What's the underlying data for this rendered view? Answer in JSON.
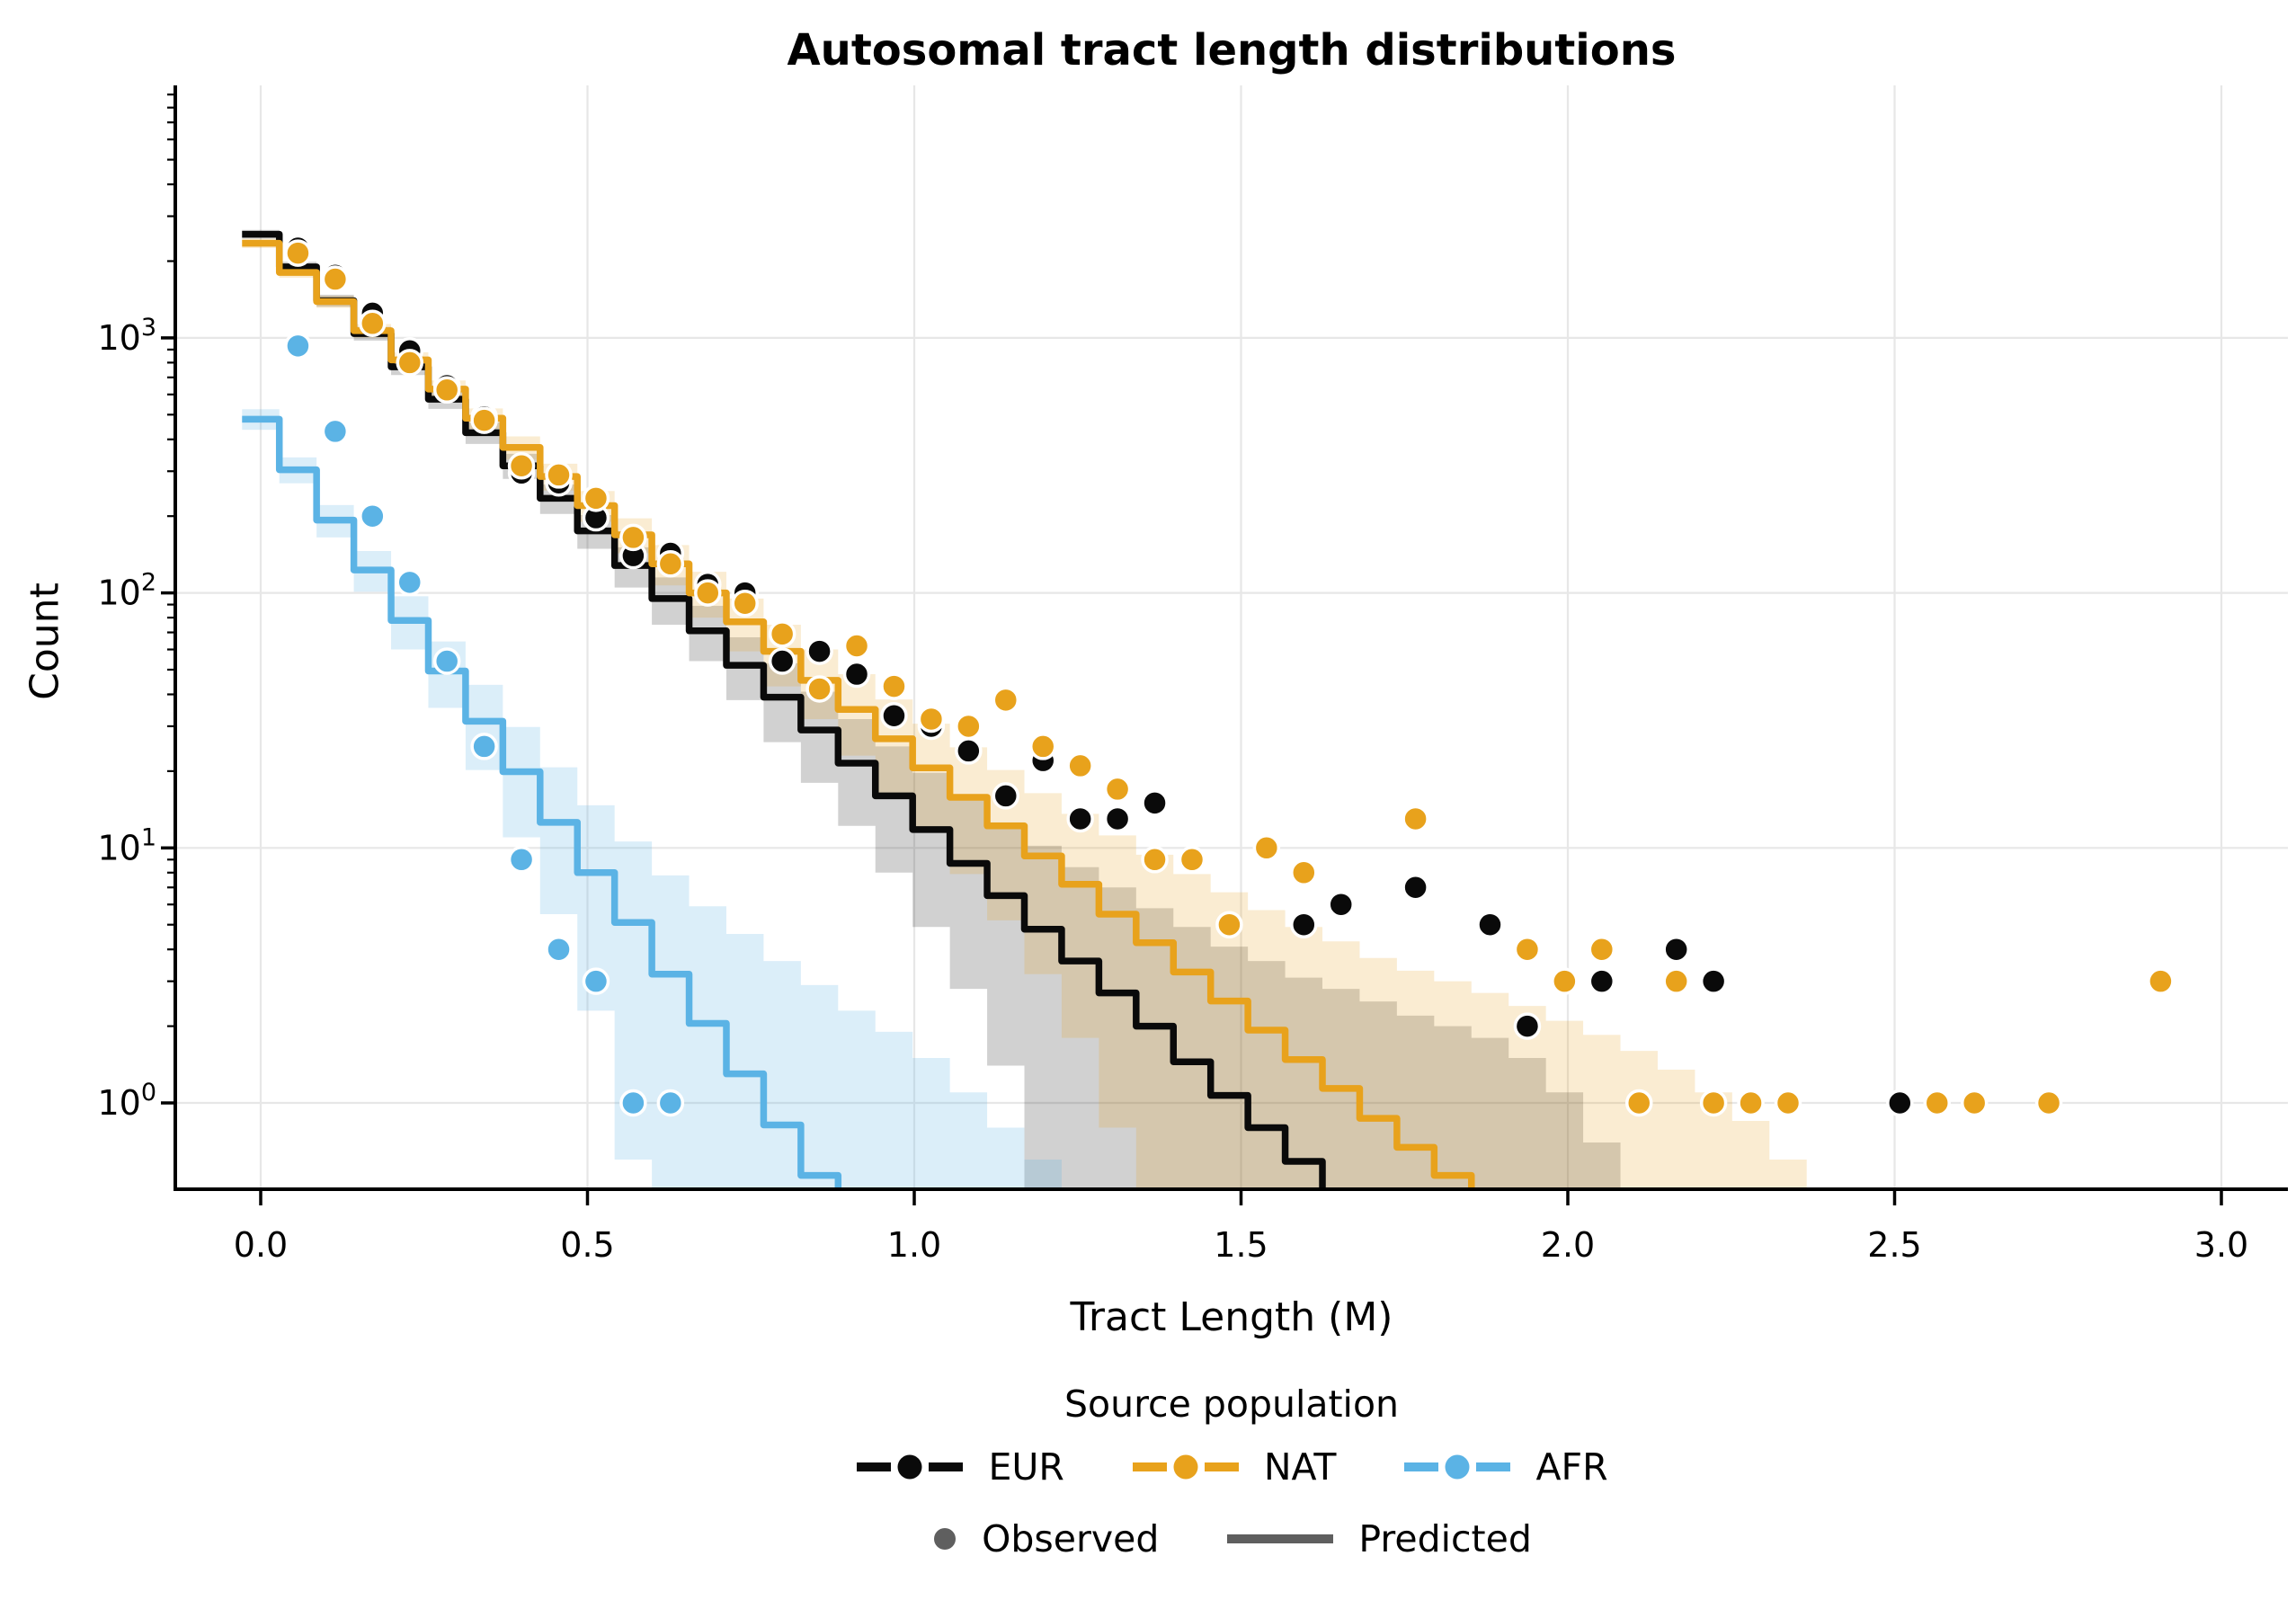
{
  "title": "Autosomal tract length distributions",
  "x_axis": {
    "label": "Tract Length (M)",
    "tick_labels": [
      "0.0",
      "0.5",
      "1.0",
      "1.5",
      "2.0",
      "2.5",
      "3.0"
    ],
    "tick_values": [
      0.0,
      0.5,
      1.0,
      1.5,
      2.0,
      2.5,
      3.0
    ]
  },
  "y_axis": {
    "label": "Count",
    "scale": "log",
    "tick_exponents": [
      3,
      2,
      1,
      0
    ],
    "tick_base": "10"
  },
  "legend": {
    "title": "Source population",
    "series_labels": [
      "EUR",
      "NAT",
      "AFR"
    ],
    "style_labels": [
      "Observed",
      "Predicted"
    ],
    "gray": "#5f5f5f"
  },
  "colors": {
    "eur": "#0a0a0a",
    "nat": "#e8a21c",
    "afr": "#5bb3e5",
    "eur_band": "rgba(0,0,0,0.18)",
    "nat_band": "rgba(232,162,28,0.20)",
    "afr_band": "rgba(91,179,229,0.22)",
    "grid": "#e7e7e7",
    "spine": "#000000"
  },
  "chart_data": {
    "type": "line",
    "subtype": "step-histogram-with-scatter",
    "title": "Autosomal tract length distributions",
    "xlabel": "Tract Length (M)",
    "ylabel": "Count",
    "xlim": [
      -0.131,
      3.102
    ],
    "ylim": [
      0.459,
      9780
    ],
    "grid": true,
    "legend_position": "below",
    "bin_width": 0.057,
    "series": [
      {
        "name": "EUR",
        "predicted": [
          2550,
          1900,
          1400,
          1040,
          770,
          575,
          425,
          315,
          235,
          175,
          128,
          95,
          71,
          52,
          39,
          29,
          21.5,
          16,
          11.8,
          8.7,
          6.5,
          4.8,
          3.6,
          2.7,
          2.0,
          1.45,
          1.07,
          0.8,
          0.59,
          0.44
        ],
        "ci_hi": [
          2652,
          1988,
          1476,
          1105,
          826,
          624,
          467,
          351,
          266,
          202,
          151,
          115,
          89,
          67,
          53,
          41,
          32,
          25,
          19.7,
          15.6,
          12.6,
          10.2,
          8.4,
          7.0,
          5.8,
          4.9,
          4.1,
          3.6,
          3.1,
          2.8,
          2.5,
          2.2,
          2.0,
          1.8,
          1.5,
          1.1,
          0.7
        ],
        "ci_lo": [
          2449,
          1813,
          1325,
          976,
          715,
          527,
          384,
          280,
          204,
          149,
          105,
          75,
          54,
          38,
          26,
          18,
          12.2,
          8.0,
          4.9,
          2.8,
          1.4,
          0.4,
          0.1,
          0,
          0,
          0,
          0,
          0,
          0,
          0,
          0,
          0,
          0,
          0,
          0,
          0,
          0
        ],
        "observed_k": [
          1,
          2,
          3,
          4,
          5,
          6,
          7,
          8,
          9,
          10,
          11,
          12,
          13,
          14,
          15,
          16,
          17,
          18,
          19,
          20,
          21,
          22,
          23,
          24,
          28,
          29,
          31,
          33,
          34,
          36,
          38,
          39,
          44
        ],
        "observed_v": [
          2250,
          1760,
          1250,
          890,
          650,
          490,
          295,
          270,
          197,
          140,
          143,
          108,
          100,
          54,
          59,
          48,
          33,
          30,
          24,
          16,
          22,
          13,
          13,
          15,
          5,
          6,
          7,
          5,
          2,
          3,
          4,
          3,
          1
        ]
      },
      {
        "name": "NAT",
        "predicted": [
          2350,
          1806,
          1388,
          1067,
          820,
          630,
          484,
          372,
          286,
          220,
          169,
          130,
          100,
          77,
          59,
          45.4,
          34.9,
          26.8,
          20.6,
          15.8,
          12.2,
          9.3,
          7.2,
          5.5,
          4.25,
          3.26,
          2.51,
          1.93,
          1.48,
          1.14,
          0.87,
          0.67,
          0.52
        ],
        "ci_hi": [
          2448,
          1892,
          1463,
          1133,
          878,
          681,
          529,
          411,
          321,
          251,
          196,
          154,
          121,
          95,
          75,
          60,
          48,
          38.2,
          30.7,
          24.8,
          20.2,
          16.4,
          13.6,
          11.2,
          9.4,
          7.9,
          6.7,
          5.7,
          4.9,
          4.3,
          3.7,
          3.3,
          3.0,
          2.7,
          2.4,
          2.1,
          1.85,
          1.6,
          1.35,
          1.1,
          0.85,
          0.6
        ],
        "ci_lo": [
          2253,
          1721,
          1313,
          1002,
          763,
          580,
          440,
          333,
          252,
          190,
          143,
          107,
          80,
          59,
          43,
          32,
          23,
          16.4,
          11.5,
          7.9,
          5.2,
          3.2,
          1.8,
          0.8,
          0.1,
          0,
          0,
          0,
          0,
          0,
          0,
          0,
          0,
          0,
          0,
          0,
          0,
          0,
          0,
          0,
          0,
          0
        ],
        "observed_k": [
          1,
          2,
          3,
          4,
          5,
          6,
          7,
          8,
          9,
          10,
          11,
          12,
          13,
          14,
          15,
          16,
          17,
          18,
          19,
          20,
          21,
          22,
          23,
          24,
          25,
          26,
          27,
          28,
          31,
          34,
          35,
          36,
          37,
          38,
          39,
          40,
          41,
          45,
          46,
          48,
          51
        ],
        "observed_v": [
          2150,
          1700,
          1140,
          800,
          625,
          475,
          315,
          290,
          235,
          165,
          130,
          100,
          91,
          69,
          42,
          62,
          43,
          32,
          30,
          38,
          25,
          21,
          17,
          9,
          9,
          5,
          10,
          8,
          13,
          4,
          3,
          4,
          1,
          3,
          1,
          1,
          1,
          1,
          1,
          1,
          3
        ]
      },
      {
        "name": "AFR",
        "predicted": [
          480,
          304,
          193,
          123,
          78,
          49.4,
          31.4,
          19.9,
          12.6,
          8.0,
          5.1,
          3.2,
          2.05,
          1.3,
          0.82,
          0.52
        ],
        "ci_hi": [
          525,
          340,
          221,
          146,
          97,
          64.5,
          43.6,
          29.8,
          20.7,
          14.7,
          10.6,
          7.8,
          5.9,
          4.6,
          3.6,
          2.9,
          2.3,
          1.9,
          1.5,
          1.1,
          0.8,
          0.6
        ],
        "ci_lo": [
          436,
          269,
          165,
          101,
          60,
          35.4,
          20.2,
          11,
          5.5,
          2.3,
          0.6,
          0,
          0,
          0,
          0,
          0,
          0,
          0,
          0,
          0,
          0,
          0
        ],
        "observed_k": [
          1,
          2,
          3,
          4,
          5,
          6,
          7,
          8,
          9,
          10,
          11
        ],
        "observed_v": [
          930,
          430,
          200,
          110,
          54,
          25,
          9,
          4,
          3,
          1,
          1
        ]
      }
    ]
  }
}
